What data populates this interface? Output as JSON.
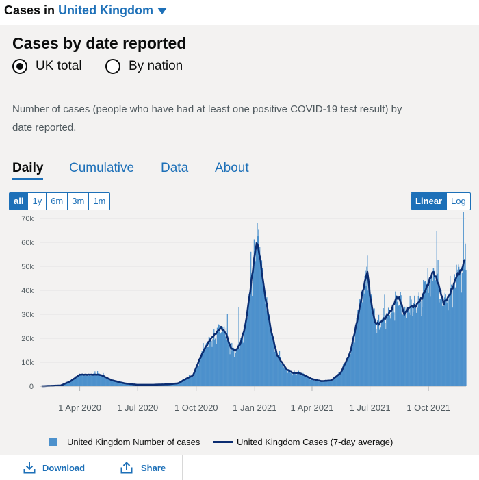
{
  "header": {
    "prefix": "Cases in",
    "location": "United Kingdom"
  },
  "title": "Cases by date reported",
  "radios": [
    {
      "label": "UK total",
      "selected": true
    },
    {
      "label": "By nation",
      "selected": false
    }
  ],
  "description": "Number of cases (people who have had at least one positive COVID-19 test result) by date reported.",
  "tabs": [
    "Daily",
    "Cumulative",
    "Data",
    "About"
  ],
  "ranges": [
    "all",
    "1y",
    "6m",
    "3m",
    "1m"
  ],
  "scales": [
    "Linear",
    "Log"
  ],
  "footer": {
    "download": "Download",
    "share": "Share"
  },
  "colors": {
    "bar": "#4d91cc",
    "line": "#0b2d71",
    "accent": "#1d70b8"
  },
  "chart_data": {
    "type": "bar",
    "x_unit": "days since 1 Feb 2020",
    "ylim": [
      0,
      70000
    ],
    "y_ticks": [
      0,
      10000,
      20000,
      30000,
      40000,
      50000,
      60000,
      70000
    ],
    "y_tick_labels": [
      "0",
      "10k",
      "20k",
      "30k",
      "40k",
      "50k",
      "60k",
      "70k"
    ],
    "x_ticks": [
      {
        "day": 60,
        "label": "1 Apr 2020"
      },
      {
        "day": 151,
        "label": "1 Jul 2020"
      },
      {
        "day": 243,
        "label": "1 Oct 2020"
      },
      {
        "day": 335,
        "label": "1 Jan 2021"
      },
      {
        "day": 425,
        "label": "1 Apr 2021"
      },
      {
        "day": 516,
        "label": "1 Jul 2021"
      },
      {
        "day": 608,
        "label": "1 Oct 2021"
      }
    ],
    "xlim": [
      -3,
      667
    ],
    "series": [
      {
        "name": "United Kingdom Cases (7-day average)",
        "points": [
          [
            0,
            0
          ],
          [
            30,
            300
          ],
          [
            45,
            2000
          ],
          [
            60,
            4800
          ],
          [
            75,
            4800
          ],
          [
            90,
            4800
          ],
          [
            95,
            4500
          ],
          [
            110,
            2500
          ],
          [
            130,
            1200
          ],
          [
            150,
            600
          ],
          [
            175,
            600
          ],
          [
            200,
            800
          ],
          [
            215,
            1200
          ],
          [
            225,
            2800
          ],
          [
            238,
            4500
          ],
          [
            248,
            11000
          ],
          [
            256,
            15500
          ],
          [
            265,
            19500
          ],
          [
            272,
            21500
          ],
          [
            282,
            24500
          ],
          [
            290,
            22000
          ],
          [
            297,
            16000
          ],
          [
            305,
            14800
          ],
          [
            312,
            17500
          ],
          [
            320,
            25000
          ],
          [
            328,
            40000
          ],
          [
            335,
            55000
          ],
          [
            338,
            60000
          ],
          [
            342,
            56000
          ],
          [
            350,
            40000
          ],
          [
            360,
            24000
          ],
          [
            370,
            13000
          ],
          [
            385,
            7000
          ],
          [
            395,
            5500
          ],
          [
            405,
            5500
          ],
          [
            415,
            4300
          ],
          [
            425,
            3000
          ],
          [
            440,
            2100
          ],
          [
            455,
            2400
          ],
          [
            470,
            5500
          ],
          [
            485,
            14000
          ],
          [
            495,
            26000
          ],
          [
            505,
            40000
          ],
          [
            512,
            48000
          ],
          [
            517,
            36000
          ],
          [
            524,
            26500
          ],
          [
            530,
            26000
          ],
          [
            540,
            28500
          ],
          [
            550,
            32000
          ],
          [
            558,
            37000
          ],
          [
            563,
            36500
          ],
          [
            570,
            30000
          ],
          [
            578,
            33000
          ],
          [
            588,
            33500
          ],
          [
            598,
            37000
          ],
          [
            608,
            43000
          ],
          [
            615,
            48000
          ],
          [
            622,
            44000
          ],
          [
            632,
            34500
          ],
          [
            640,
            37500
          ],
          [
            648,
            42500
          ],
          [
            652,
            46000
          ],
          [
            660,
            48500
          ],
          [
            667,
            54500
          ]
        ]
      },
      {
        "name": "United Kingdom Number of cases",
        "note": "daily bars fluctuate around the 7-day average"
      }
    ]
  }
}
